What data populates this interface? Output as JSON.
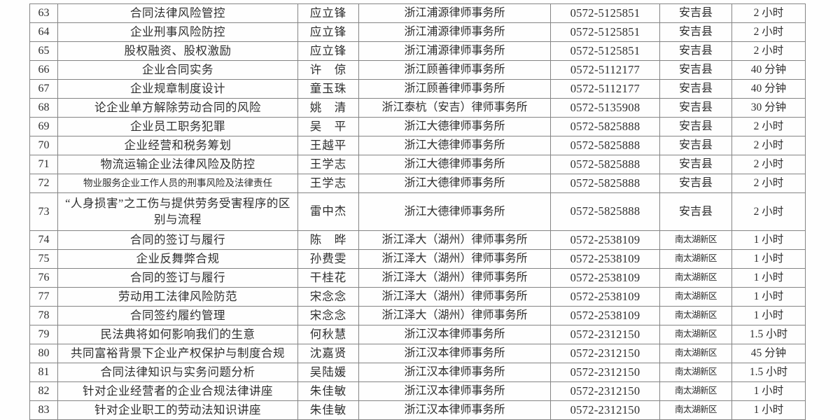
{
  "document": {
    "type": "lecture-schedule-table",
    "language": "zh-CN"
  },
  "colors": {
    "background": "#fefefe",
    "border": "#848484",
    "text": "#2e2e2e"
  },
  "table": {
    "columns": [
      "no",
      "title",
      "lecturer",
      "firm",
      "phone",
      "district",
      "duration"
    ],
    "rows": [
      {
        "no": "63",
        "title": "合同法律风险管控",
        "lecturer": "应立锋",
        "firm": "浙江浦源律师事务所",
        "phone": "0572-5125851",
        "district": "安吉县",
        "duration": "2 小时"
      },
      {
        "no": "64",
        "title": "企业刑事风险防控",
        "lecturer": "应立锋",
        "firm": "浙江浦源律师事务所",
        "phone": "0572-5125851",
        "district": "安吉县",
        "duration": "2 小时"
      },
      {
        "no": "65",
        "title": "股权融资、股权激励",
        "lecturer": "应立锋",
        "firm": "浙江浦源律师事务所",
        "phone": "0572-5125851",
        "district": "安吉县",
        "duration": "2 小时"
      },
      {
        "no": "66",
        "title": "企业合同实务",
        "lecturer": "许　倞",
        "firm": "浙江顾善律师事务所",
        "phone": "0572-5112177",
        "district": "安吉县",
        "duration": "40 分钟"
      },
      {
        "no": "67",
        "title": "企业规章制度设计",
        "lecturer": "童玉珠",
        "firm": "浙江顾善律师事务所",
        "phone": "0572-5112177",
        "district": "安吉县",
        "duration": "40 分钟"
      },
      {
        "no": "68",
        "title": "论企业单方解除劳动合同的风险",
        "lecturer": "姚　清",
        "firm": "浙江泰杭（安吉）律师事务所",
        "phone": "0572-5135908",
        "district": "安吉县",
        "duration": "30 分钟"
      },
      {
        "no": "69",
        "title": "企业员工职务犯罪",
        "lecturer": "吴　平",
        "firm": "浙江大德律师事务所",
        "phone": "0572-5825888",
        "district": "安吉县",
        "duration": "2 小时"
      },
      {
        "no": "70",
        "title": "企业经营和税务筹划",
        "lecturer": "王越平",
        "firm": "浙江大德律师事务所",
        "phone": "0572-5825888",
        "district": "安吉县",
        "duration": "2 小时"
      },
      {
        "no": "71",
        "title": "物流运输企业法律风险及防控",
        "lecturer": "王学志",
        "firm": "浙江大德律师事务所",
        "phone": "0572-5825888",
        "district": "安吉县",
        "duration": "2 小时"
      },
      {
        "no": "72",
        "title": "物业服务企业工作人员的刑事风险及法律责任",
        "lecturer": "王学志",
        "firm": "浙江大德律师事务所",
        "phone": "0572-5825888",
        "district": "安吉县",
        "duration": "2 小时"
      },
      {
        "no": "73",
        "title": "“人身损害”之工伤与提供劳务受害程序的区别与流程",
        "lecturer": "雷中杰",
        "firm": "浙江大德律师事务所",
        "phone": "0572-5825888",
        "district": "安吉县",
        "duration": "2 小时"
      },
      {
        "no": "74",
        "title": "合同的签订与履行",
        "lecturer": "陈　晔",
        "firm": "浙江泽大（湖州）律师事务所",
        "phone": "0572-2538109",
        "district": "南太湖新区",
        "duration": "1 小时"
      },
      {
        "no": "75",
        "title": "企业反舞弊合规",
        "lecturer": "孙费雯",
        "firm": "浙江泽大（湖州）律师事务所",
        "phone": "0572-2538109",
        "district": "南太湖新区",
        "duration": "1 小时"
      },
      {
        "no": "76",
        "title": "合同的签订与履行",
        "lecturer": "干桂花",
        "firm": "浙江泽大（湖州）律师事务所",
        "phone": "0572-2538109",
        "district": "南太湖新区",
        "duration": "1 小时"
      },
      {
        "no": "77",
        "title": "劳动用工法律风险防范",
        "lecturer": "宋念念",
        "firm": "浙江泽大（湖州）律师事务所",
        "phone": "0572-2538109",
        "district": "南太湖新区",
        "duration": "1 小时"
      },
      {
        "no": "78",
        "title": "合同签约履约管理",
        "lecturer": "宋念念",
        "firm": "浙江泽大（湖州）律师事务所",
        "phone": "0572-2538109",
        "district": "南太湖新区",
        "duration": "1 小时"
      },
      {
        "no": "79",
        "title": "民法典将如何影响我们的生意",
        "lecturer": "何秋慧",
        "firm": "浙江汉本律师事务所",
        "phone": "0572-2312150",
        "district": "南太湖新区",
        "duration": "1.5 小时"
      },
      {
        "no": "80",
        "title": "共同富裕背景下企业产权保护与制度合规",
        "lecturer": "沈嘉贤",
        "firm": "浙江汉本律师事务所",
        "phone": "0572-2312150",
        "district": "南太湖新区",
        "duration": "45 分钟"
      },
      {
        "no": "81",
        "title": "合同法律知识与实务问题分析",
        "lecturer": "吴陆媛",
        "firm": "浙江汉本律师事务所",
        "phone": "0572-2312150",
        "district": "南太湖新区",
        "duration": "1.5 小时"
      },
      {
        "no": "82",
        "title": "针对企业经营者的企业合规法律讲座",
        "lecturer": "朱佳敏",
        "firm": "浙江汉本律师事务所",
        "phone": "0572-2312150",
        "district": "南太湖新区",
        "duration": "1 小时"
      },
      {
        "no": "83",
        "title": "针对企业职工的劳动法知识讲座",
        "lecturer": "朱佳敏",
        "firm": "浙江汉本律师事务所",
        "phone": "0572-2312150",
        "district": "南太湖新区",
        "duration": "1 小时"
      }
    ]
  }
}
